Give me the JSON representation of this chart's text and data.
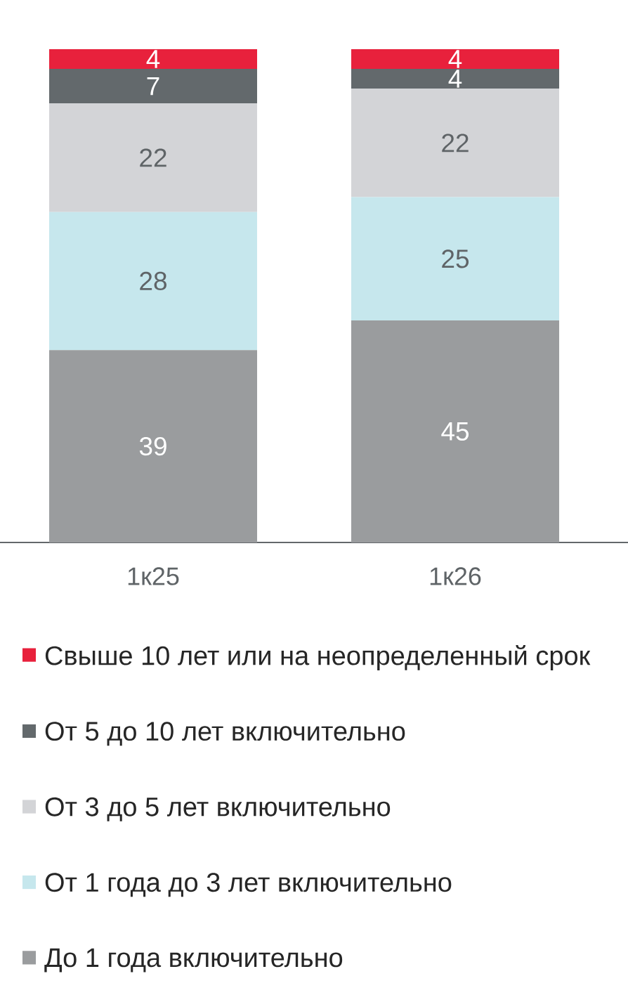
{
  "chart_data": {
    "type": "bar",
    "stacked": true,
    "categories": [
      "1к25",
      "1к26"
    ],
    "series": [
      {
        "name": "До 1 года включительно",
        "color": "#9a9c9e",
        "values": [
          39,
          45
        ]
      },
      {
        "name": "От 1 года до 3 лет включительно",
        "color": "#c6e7ed",
        "values": [
          28,
          25
        ]
      },
      {
        "name": "От 3 до 5 лет включительно",
        "color": "#d3d4d7",
        "values": [
          22,
          22
        ]
      },
      {
        "name": "От 5 до 10 лет включительно",
        "color": "#63696c",
        "values": [
          7,
          4
        ]
      },
      {
        "name": "Свыше 10 лет или на неопределенный срок",
        "color": "#e8213c",
        "values": [
          4,
          4
        ]
      }
    ],
    "data_labels": true,
    "legend": "bottom",
    "tick_labels": "x"
  }
}
